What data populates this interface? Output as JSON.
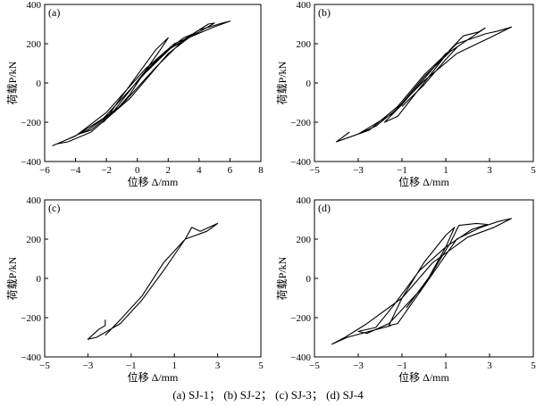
{
  "caption": "(a) SJ-1；  (b) SJ-2；  (c) SJ-3；  (d) SJ-4",
  "chart_data": [
    {
      "type": "line",
      "panel_label": "(a)",
      "xlabel": "位移 Δ/mm",
      "ylabel": "荷载P/kN",
      "xlim": [
        -6,
        8
      ],
      "ylim": [
        -400,
        400
      ],
      "xticks": [
        -6,
        -4,
        -2,
        0,
        2,
        4,
        6,
        8
      ],
      "yticks": [
        -400,
        -200,
        0,
        200,
        400
      ],
      "grid": false,
      "series": [
        {
          "x": [
            -1.5,
            -0.5,
            0.5,
            1.5,
            2.0,
            1.2,
            0.0,
            -1.2,
            -2.0,
            -2.2,
            -1.5,
            0.0,
            1.8,
            3.0,
            3.6,
            3.3,
            2.2,
            0.5,
            -1.0,
            -2.2,
            -3.4,
            -3.8,
            -3.0,
            -1.0,
            1.2,
            3.0,
            4.6,
            5.0,
            4.0,
            2.0,
            0.5,
            -1.5,
            -3.2,
            -4.6,
            -5.2,
            -4.5,
            -3.0,
            -0.5,
            2.0,
            4.0,
            5.5,
            6.0,
            4.8,
            2.4,
            0.5,
            -2.0,
            -4.0,
            -5.5
          ],
          "y": [
            -150,
            -60,
            60,
            170,
            230,
            170,
            40,
            -90,
            -180,
            -200,
            -140,
            10,
            160,
            230,
            250,
            230,
            180,
            50,
            -80,
            -180,
            -240,
            -260,
            -240,
            -110,
            80,
            220,
            300,
            305,
            260,
            170,
            60,
            -140,
            -240,
            -290,
            -310,
            -300,
            -250,
            -80,
            150,
            270,
            305,
            315,
            280,
            200,
            70,
            -150,
            -270,
            -320
          ]
        }
      ]
    },
    {
      "type": "line",
      "panel_label": "(b)",
      "xlabel": "位移 Δ/mm",
      "ylabel": "荷载P/kN",
      "xlim": [
        -5,
        5
      ],
      "ylim": [
        -400,
        400
      ],
      "xticks": [
        -5,
        -3,
        -1,
        1,
        3,
        5
      ],
      "yticks": [
        -400,
        -200,
        0,
        200,
        400
      ],
      "grid": false,
      "series": [
        {
          "x": [
            -1.0,
            0.0,
            1.0,
            1.5,
            1.0,
            0.0,
            -1.0,
            -1.8,
            -1.2,
            0.0,
            1.2,
            1.8,
            2.5,
            2.8,
            2.2,
            1.2,
            0.0,
            -1.2,
            -2.2,
            -3.0,
            -2.5,
            -1.2,
            0.0,
            1.5,
            2.8,
            3.4,
            4.0,
            3.0,
            1.5,
            0.0,
            -1.5,
            -3.0,
            -4.0,
            -3.4
          ],
          "y": [
            -120,
            -10,
            120,
            180,
            150,
            20,
            -110,
            -200,
            -170,
            0,
            170,
            240,
            260,
            280,
            235,
            160,
            30,
            -130,
            -220,
            -260,
            -240,
            -120,
            40,
            200,
            250,
            265,
            285,
            230,
            150,
            10,
            -160,
            -260,
            -300,
            -250
          ]
        }
      ]
    },
    {
      "type": "line",
      "panel_label": "(c)",
      "xlabel": "位移 Δ/mm",
      "ylabel": "荷载P/kN",
      "xlim": [
        -5,
        5
      ],
      "ylim": [
        -400,
        400
      ],
      "xticks": [
        -5,
        -3,
        -1,
        1,
        3,
        5
      ],
      "yticks": [
        -400,
        -200,
        0,
        200,
        400
      ],
      "grid": false,
      "series": [
        {
          "x": [
            -2.2,
            -2.2,
            -2.5,
            -3.0,
            -2.6,
            -1.5,
            -0.5,
            0.5,
            1.5,
            1.8,
            2.2,
            3.0,
            2.5,
            1.5,
            0.5,
            -0.5,
            -1.5,
            -2.2
          ],
          "y": [
            -210,
            -240,
            -260,
            -310,
            -300,
            -230,
            -110,
            40,
            200,
            260,
            240,
            280,
            240,
            200,
            80,
            -90,
            -210,
            -290
          ]
        }
      ]
    },
    {
      "type": "line",
      "panel_label": "(d)",
      "xlabel": "位移 Δ/mm",
      "ylabel": "荷载P/kN",
      "xlim": [
        -5,
        5
      ],
      "ylim": [
        -400,
        400
      ],
      "xticks": [
        -5,
        -3,
        -1,
        1,
        3,
        5
      ],
      "yticks": [
        -400,
        -200,
        0,
        200,
        400
      ],
      "grid": false,
      "series": [
        {
          "x": [
            -0.8,
            0.2,
            1.0,
            1.4,
            1.0,
            0.0,
            -1.0,
            -1.6,
            -1.2,
            0.0,
            1.2,
            1.6,
            2.4,
            2.9,
            2.2,
            1.0,
            -0.2,
            -1.4,
            -2.2,
            -3.0,
            -2.6,
            -1.6,
            0.0,
            1.5,
            2.6,
            3.4,
            4.0,
            3.2,
            2.0,
            0.4,
            -1.0,
            -2.6,
            -3.6,
            -4.2,
            -3.5,
            -1.5
          ],
          "y": [
            -150,
            0,
            160,
            260,
            220,
            80,
            -100,
            -240,
            -230,
            -40,
            180,
            270,
            280,
            275,
            250,
            160,
            40,
            -140,
            -250,
            -270,
            -280,
            -230,
            -40,
            200,
            260,
            290,
            305,
            260,
            210,
            80,
            -100,
            -230,
            -300,
            -335,
            -300,
            -240
          ]
        }
      ]
    }
  ]
}
